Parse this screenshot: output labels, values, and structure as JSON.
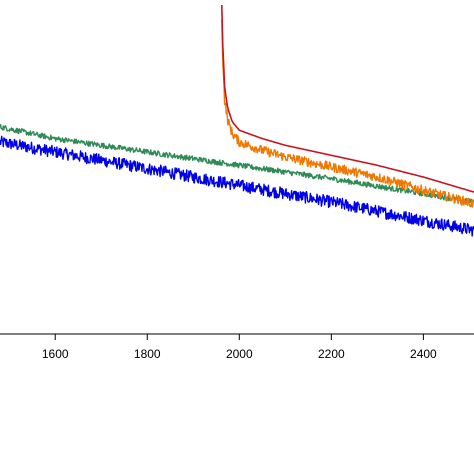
{
  "chart_data": {
    "type": "line",
    "title": "",
    "xlabel": "",
    "ylabel": "",
    "xlim": [
      1480,
      2510
    ],
    "ylim": [
      0,
      1
    ],
    "grid": false,
    "x_ticks": [
      {
        "value": 1600,
        "label": "1600"
      },
      {
        "value": 1800,
        "label": "1800"
      },
      {
        "value": 2000,
        "label": "2000"
      },
      {
        "value": 2200,
        "label": "2200"
      },
      {
        "value": 2400,
        "label": "2400"
      }
    ],
    "series": [
      {
        "color": "#0000e6",
        "noise": 0.018,
        "x": [
          1480,
          1600,
          1800,
          2000,
          2200,
          2400,
          2510
        ],
        "y": [
          0.575,
          0.545,
          0.495,
          0.445,
          0.395,
          0.34,
          0.31
        ]
      },
      {
        "color": "#2e8b57",
        "noise": 0.008,
        "x": [
          1480,
          1600,
          1800,
          2000,
          2200,
          2400,
          2510
        ],
        "y": [
          0.62,
          0.585,
          0.545,
          0.505,
          0.465,
          0.42,
          0.395
        ]
      },
      {
        "color": "#f07800",
        "noise": 0.014,
        "x": [
          1962,
          1964,
          1968,
          1975,
          1985,
          2000,
          2050,
          2100,
          2200,
          2300,
          2400,
          2510
        ],
        "y": [
          0.94,
          0.83,
          0.7,
          0.64,
          0.6,
          0.575,
          0.55,
          0.53,
          0.5,
          0.47,
          0.43,
          0.39
        ]
      },
      {
        "color": "#c8141e",
        "noise": 0,
        "x": [
          1962,
          1964,
          1968,
          1975,
          1985,
          2000,
          2050,
          2100,
          2200,
          2300,
          2400,
          2510
        ],
        "y": [
          0.985,
          0.87,
          0.74,
          0.675,
          0.635,
          0.61,
          0.585,
          0.565,
          0.535,
          0.505,
          0.47,
          0.425
        ]
      }
    ]
  }
}
